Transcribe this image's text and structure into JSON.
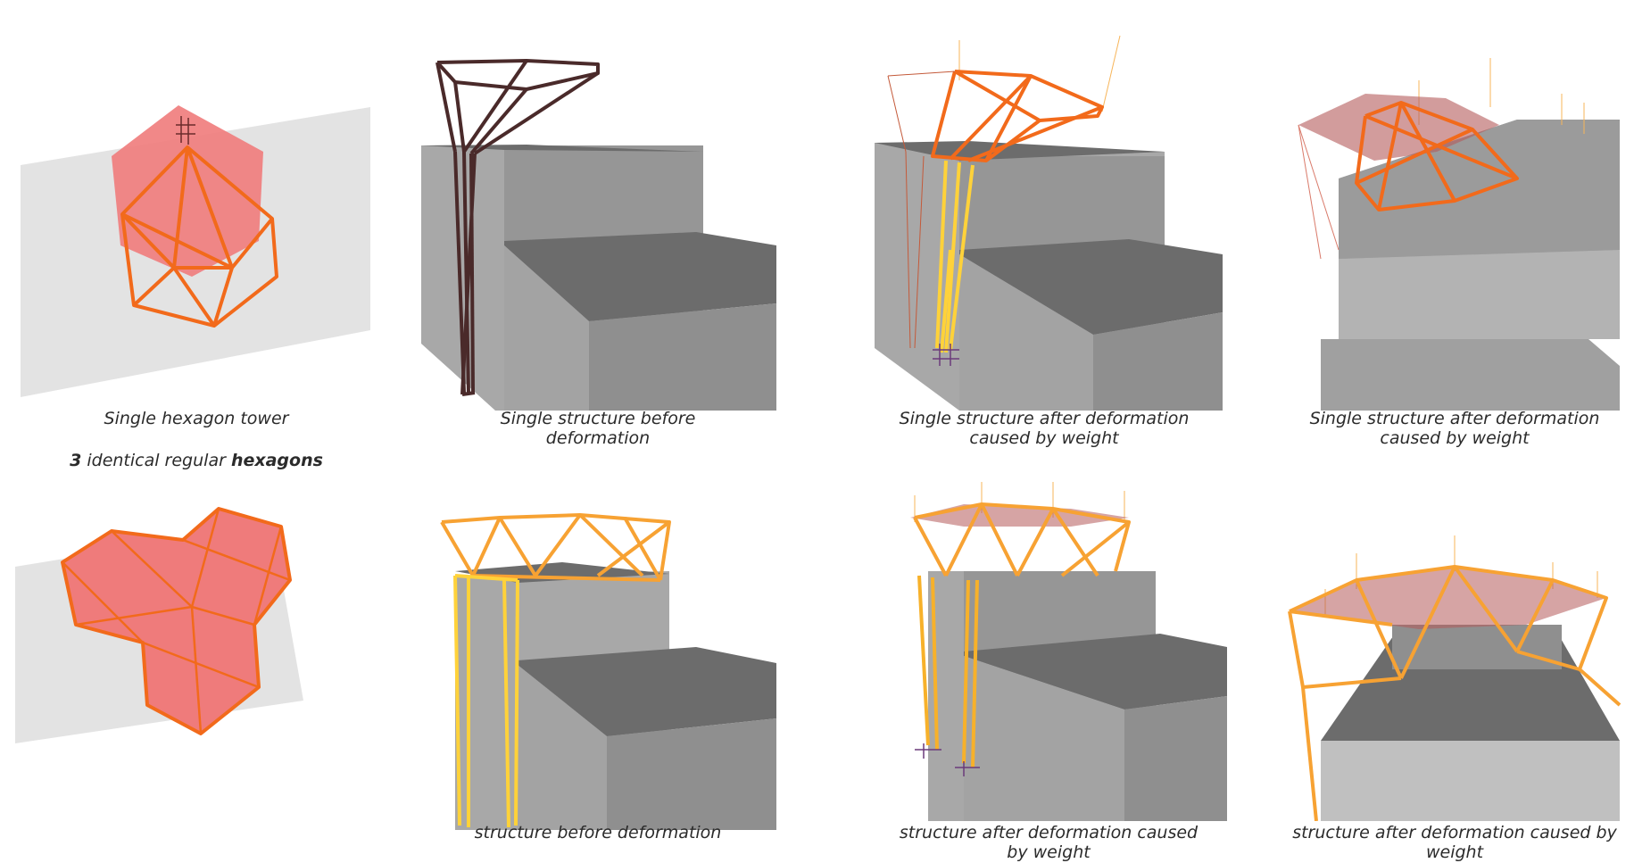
{
  "captions": {
    "r1c1": "Single hexagon tower",
    "r1c2": "Single structure before deformation",
    "r1c3": "Single structure after deformation caused by weight",
    "r1c4": "Single structure after deformation caused by weight",
    "r2c2": "structure before deformation",
    "r2c3": "structure after deformation caused by weight",
    "r2c4": "structure after deformation caused by weight"
  },
  "subtitle": {
    "count": "3",
    "middle": " identical regular ",
    "shape": "hexagons"
  },
  "colors": {
    "plane": "#e3e3e3",
    "hexagon_fill": "#ef7b7b",
    "orange": "#f26a1b",
    "yellow": "#ffd23a",
    "dark_frame": "#4a2a2a",
    "block_light": "#a8a8a8",
    "block_mid": "#8f8f8f",
    "block_top": "#6c6c6c"
  },
  "icons": [
    "support-pin-icon",
    "load-label-icon"
  ]
}
